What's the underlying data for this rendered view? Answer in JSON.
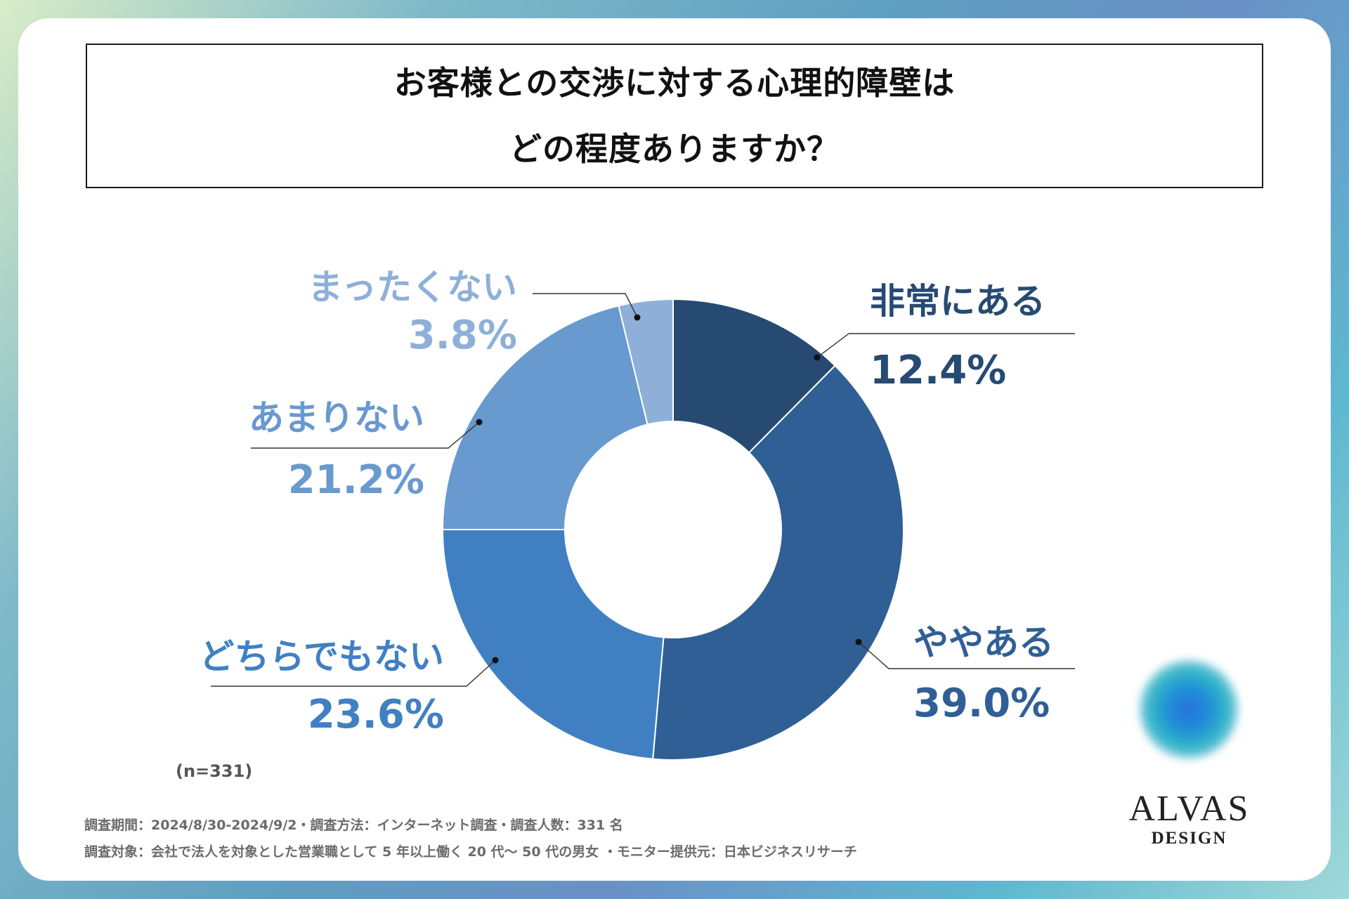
{
  "chart_data": {
    "type": "pie",
    "donut": true,
    "title_lines": [
      "お客様との交渉に対する心理的障壁は",
      "どの程度ありますか？"
    ],
    "unit": "%",
    "slices": [
      {
        "label": "非常にある",
        "value_text": "12.4%",
        "value": 12.4,
        "color": "#264a72",
        "label_color": "#264a72"
      },
      {
        "label": "ややある",
        "value_text": "39.0%",
        "value": 39.0,
        "color": "#2f5f95",
        "label_color": "#2f5f95"
      },
      {
        "label": "どちらでもない",
        "value_text": "23.6%",
        "value": 23.6,
        "color": "#4080c2",
        "label_color": "#4080c2"
      },
      {
        "label": "あまりない",
        "value_text": "21.2%",
        "value": 21.2,
        "color": "#6899cf",
        "label_color": "#6899cf"
      },
      {
        "label": "まったくない",
        "value_text": "3.8%",
        "value": 3.8,
        "color": "#8eb0d8",
        "label_color": "#8eb0d8"
      }
    ],
    "sample": "(n=331)"
  },
  "meta": {
    "line1": "調査期間：2024/8/30-2024/9/2・調査方法：インターネット調査・調査人数：331 名",
    "line2": "調査対象：会社で法人を対象とした営業職として 5 年以上働く 20 代〜 50 代の男女 ・モニター提供元：日本ビジネスリサーチ"
  },
  "logo": {
    "main": "ALVAS",
    "sub": "DESIGN"
  }
}
